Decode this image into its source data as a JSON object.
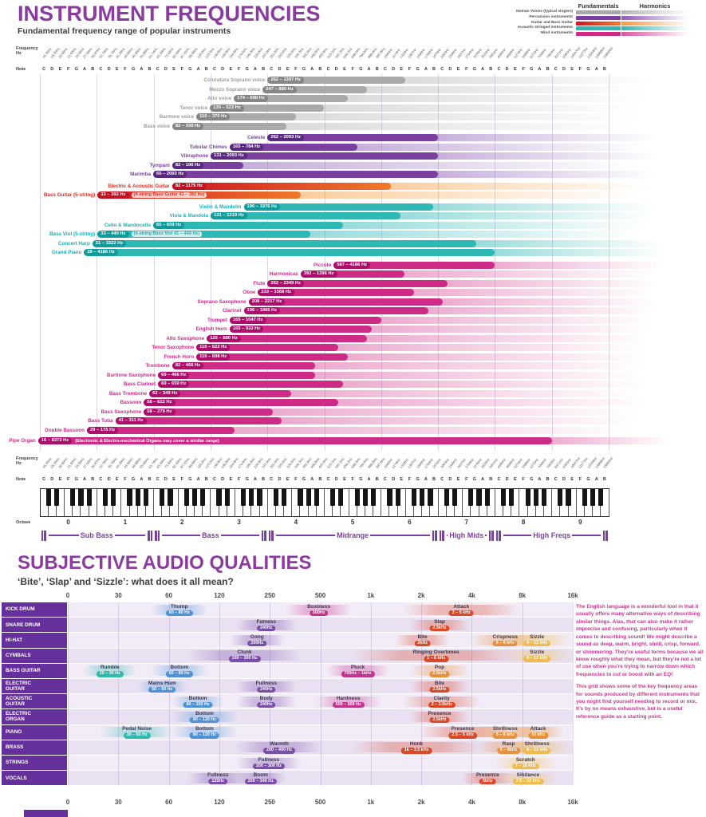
{
  "colors": {
    "accent_purple": "#8b3a9f",
    "dark_text": "#3d3d3d",
    "chip_colors": {
      "teal": "#35b8ae",
      "blue": "#4f93d6",
      "purple": "#7a4fa8",
      "magenta": "#c53590",
      "red": "#d94a2b",
      "orange": "#e8903c",
      "yellow": "#eebd4e"
    },
    "groups": {
      "voices": {
        "bar": "#a9a9a9",
        "pill": "#868686",
        "label": "#9b9b9b",
        "harm": "#b5b5b5"
      },
      "percussion": {
        "bar": "#7b3fa0",
        "pill": "#5a2a82",
        "label": "#7b3fa0",
        "harm": "#8d5cb5"
      },
      "guitars": {
        "bar": "linear-gradient(90deg,#cf1420,#f07a28)",
        "pill": "#c11122",
        "label": "#e02b1c",
        "harm": "#f59a3a"
      },
      "strings": {
        "bar": "#2db7b5",
        "pill": "#0f9c9c",
        "label": "#1fadad",
        "harm": "#2db7b5"
      },
      "winds": {
        "bar": "#ce2b87",
        "pill": "#ad0e6b",
        "label": "#ce2b87",
        "harm": "#d8559e"
      }
    },
    "grid": {
      "row_label_bg": "#66309c",
      "stripe_a": "#f2ecf8",
      "stripe_b": "#e9e0f2",
      "bracket": "#7b3fa0",
      "note_text": "#c9368f"
    }
  },
  "chart_data": [
    {
      "type": "bar",
      "title": "INSTRUMENT FREQUENCIES",
      "subtitle": "Fundamental frequency range of popular instruments",
      "xlabel": "Frequency Hz",
      "x_scale": "log2-octaves",
      "x_range_hz": [
        16.35,
        16744
      ],
      "legend": {
        "fundamentals_header": "Fundamentals",
        "harmonics_header": "Harmonics",
        "items": [
          {
            "label": "Human Voices (typical singers)",
            "group": "voices"
          },
          {
            "label": "Percussion instruments",
            "group": "percussion"
          },
          {
            "label": "Guitar and Bass Guitar",
            "group": "guitars"
          },
          {
            "label": "Acoustic stringed instruments",
            "group": "strings"
          },
          {
            "label": "Wind instruments",
            "group": "winds"
          }
        ]
      },
      "axis": {
        "frequency_label": "Frequency\nHz",
        "note_label": "Note",
        "octave_label": "Octave",
        "notes": [
          "C",
          "D",
          "E",
          "F",
          "G",
          "A",
          "B"
        ],
        "base_freqs": [
          16.35,
          18.35,
          20.6,
          21.83,
          24.5,
          27.5,
          30.87
        ],
        "octaves": [
          0,
          1,
          2,
          3,
          4,
          5,
          6,
          7,
          8,
          9
        ]
      },
      "ranges": [
        {
          "label": "Sub Bass",
          "f1": 16.35,
          "f2": 65.41
        },
        {
          "label": "Bass",
          "f1": 65.41,
          "f2": 261.63
        },
        {
          "label": "Midrange",
          "f1": 261.63,
          "f2": 2093
        },
        {
          "label": "High Mids",
          "f1": 2093,
          "f2": 4186
        },
        {
          "label": "High Freqs",
          "f1": 4186,
          "f2": 16744
        }
      ],
      "instruments": [
        {
          "name": "Coloratura Soprano voice",
          "range_label": "262 – 1397 Hz",
          "fmin": 262,
          "fmax": 1397,
          "group": "voices"
        },
        {
          "name": "Mezzo Soprano voice",
          "range_label": "247 – 880 Hz",
          "fmin": 247,
          "fmax": 880,
          "group": "voices"
        },
        {
          "name": "Alto voice",
          "range_label": "174 – 698 Hz",
          "fmin": 174,
          "fmax": 698,
          "group": "voices"
        },
        {
          "name": "Tenor voice",
          "range_label": "130 – 523 Hz",
          "fmin": 130,
          "fmax": 523,
          "group": "voices"
        },
        {
          "name": "Baritone voice",
          "range_label": "110 – 370 Hz",
          "fmin": 110,
          "fmax": 370,
          "group": "voices"
        },
        {
          "name": "Bass voice",
          "range_label": "82 – 330 Hz",
          "fmin": 82,
          "fmax": 330,
          "group": "voices"
        },
        {
          "name": "Celeste",
          "range_label": "262 – 2093 Hz",
          "fmin": 262,
          "fmax": 2093,
          "group": "percussion"
        },
        {
          "name": "Tubular Chimes",
          "range_label": "165 – 784 Hz",
          "fmin": 165,
          "fmax": 784,
          "group": "percussion"
        },
        {
          "name": "Vibraphone",
          "range_label": "131 – 2093 Hz",
          "fmin": 131,
          "fmax": 2093,
          "group": "percussion"
        },
        {
          "name": "Tympani",
          "range_label": "82 – 196 Hz",
          "fmin": 82,
          "fmax": 196,
          "group": "percussion"
        },
        {
          "name": "Marimba",
          "range_label": "65 – 2093 Hz",
          "fmin": 65,
          "fmax": 2093,
          "group": "percussion"
        },
        {
          "name": "Electric & Acoustic Guitar",
          "range_label": "82 – 1175 Hz",
          "fmin": 82,
          "fmax": 1175,
          "group": "guitars"
        },
        {
          "name": "Bass Guitar (5-string)",
          "range_label": "33 – 392 Hz",
          "fmin": 33,
          "fmax": 392,
          "group": "guitars",
          "note": "(4-string Bass Guitar 41 – 392 Hz)"
        },
        {
          "name": "Violin & Mandolin",
          "range_label": "196 – 1976 Hz",
          "fmin": 196,
          "fmax": 1976,
          "group": "strings"
        },
        {
          "name": "Viola & Mandola",
          "range_label": "131 – 1319 Hz",
          "fmin": 131,
          "fmax": 1319,
          "group": "strings"
        },
        {
          "name": "Cello & Mandocello",
          "range_label": "65 – 659 Hz",
          "fmin": 65,
          "fmax": 659,
          "group": "strings"
        },
        {
          "name": "Bass Viol (5-string)",
          "range_label": "33 – 440 Hz",
          "fmin": 33,
          "fmax": 440,
          "group": "strings",
          "note": "(4-string Bass Viol 41 – 440 Hz)"
        },
        {
          "name": "Concert Harp",
          "range_label": "31 – 3322 Hz",
          "fmin": 31,
          "fmax": 3322,
          "group": "strings"
        },
        {
          "name": "Grand Piano",
          "range_label": "28 – 4186 Hz",
          "fmin": 28,
          "fmax": 4186,
          "group": "strings"
        },
        {
          "name": "Piccolo",
          "range_label": "587 – 4186 Hz",
          "fmin": 587,
          "fmax": 4186,
          "group": "winds"
        },
        {
          "name": "Harmonicas",
          "range_label": "392 – 1396 Hz",
          "fmin": 392,
          "fmax": 1396,
          "group": "winds"
        },
        {
          "name": "Flute",
          "range_label": "262 – 2349 Hz",
          "fmin": 262,
          "fmax": 2349,
          "group": "winds"
        },
        {
          "name": "Oboe",
          "range_label": "233 – 1568 Hz",
          "fmin": 233,
          "fmax": 1568,
          "group": "winds"
        },
        {
          "name": "Soprano Saxophone",
          "range_label": "208 – 2217 Hz",
          "fmin": 208,
          "fmax": 2217,
          "group": "winds"
        },
        {
          "name": "Clarinet",
          "range_label": "196 – 1865 Hz",
          "fmin": 196,
          "fmax": 1865,
          "group": "winds"
        },
        {
          "name": "Trumpet",
          "range_label": "165 – 1047 Hz",
          "fmin": 165,
          "fmax": 1047,
          "group": "winds"
        },
        {
          "name": "English Horn",
          "range_label": "165 – 932 Hz",
          "fmin": 165,
          "fmax": 932,
          "group": "winds"
        },
        {
          "name": "Alto Saxophone",
          "range_label": "125 – 880 Hz",
          "fmin": 125,
          "fmax": 880,
          "group": "winds"
        },
        {
          "name": "Tenor Saxophone",
          "range_label": "110 – 622 Hz",
          "fmin": 110,
          "fmax": 622,
          "group": "winds"
        },
        {
          "name": "French Horn",
          "range_label": "110 – 698 Hz",
          "fmin": 110,
          "fmax": 698,
          "group": "winds"
        },
        {
          "name": "Trombone",
          "range_label": "82 – 466 Hz",
          "fmin": 82,
          "fmax": 466,
          "group": "winds"
        },
        {
          "name": "Baritone Saxophone",
          "range_label": "69 – 466 Hz",
          "fmin": 69,
          "fmax": 466,
          "group": "winds"
        },
        {
          "name": "Bass Clarinet",
          "range_label": "69 – 659 Hz",
          "fmin": 69,
          "fmax": 659,
          "group": "winds"
        },
        {
          "name": "Bass Trombone",
          "range_label": "62 – 349 Hz",
          "fmin": 62,
          "fmax": 349,
          "group": "winds"
        },
        {
          "name": "Bassoon",
          "range_label": "58 – 622 Hz",
          "fmin": 58,
          "fmax": 622,
          "group": "winds"
        },
        {
          "name": "Bass Saxophone",
          "range_label": "58 – 279 Hz",
          "fmin": 58,
          "fmax": 279,
          "group": "winds"
        },
        {
          "name": "Bass Tuba",
          "range_label": "41 – 311 Hz",
          "fmin": 41,
          "fmax": 311,
          "group": "winds"
        },
        {
          "name": "Double Bassoon",
          "range_label": "29 – 175 Hz",
          "fmin": 29,
          "fmax": 175,
          "group": "winds"
        },
        {
          "name": "Pipe Organ",
          "range_label": "16 – 8372 Hz",
          "fmin": 16,
          "fmax": 8372,
          "group": "winds",
          "note": "(Electronic & Electro-mechanical Organs may cover a similar range)",
          "note_white": true
        }
      ]
    },
    {
      "type": "table",
      "title": "SUBJECTIVE AUDIO QUALITIES",
      "subtitle": "‘Bite’, ‘Slap’ and ‘Sizzle’: what does it all mean?",
      "ticks": [
        "0",
        "30",
        "60",
        "120",
        "250",
        "500",
        "1k",
        "2k",
        "4k",
        "8k",
        "16k"
      ],
      "tick_values": [
        0,
        30,
        60,
        120,
        250,
        500,
        1000,
        2000,
        4000,
        8000,
        16000
      ],
      "rows": [
        {
          "label": "KICK DRUM",
          "chips": [
            {
              "label": "Thump",
              "value": "60 – 80 Hz",
              "f1": 60,
              "f2": 80,
              "color": "blue"
            },
            {
              "label": "Boxiness",
              "value": "500Hz",
              "f1": 400,
              "f2": 600,
              "color": "magenta"
            },
            {
              "label": "Attack",
              "value": "2 – 6 kHz",
              "f1": 2000,
              "f2": 6000,
              "color": "red"
            }
          ]
        },
        {
          "label": "SNARE DRUM",
          "chips": [
            {
              "label": "Fatness",
              "value": "240Hz",
              "f1": 200,
              "f2": 280,
              "color": "purple"
            },
            {
              "label": "Slap",
              "value": "2.5kHz",
              "f1": 2200,
              "f2": 3000,
              "color": "red"
            }
          ]
        },
        {
          "label": "HI-HAT",
          "chips": [
            {
              "label": "Gong",
              "value": "200Hz",
              "f1": 180,
              "f2": 240,
              "color": "purple"
            },
            {
              "label": "Bite",
              "value": "2kHz",
              "f1": 1800,
              "f2": 2300,
              "color": "red"
            },
            {
              "label": "Crispness",
              "value": "6 – 8 kHz",
              "f1": 5000,
              "f2": 8000,
              "color": "orange"
            },
            {
              "label": "Sizzle",
              "value": "8 – 12 kHz",
              "f1": 8000,
              "f2": 12000,
              "color": "yellow"
            }
          ]
        },
        {
          "label": "CYMBALS",
          "chips": [
            {
              "label": "Clunk",
              "value": "100 – 300 Hz",
              "f1": 100,
              "f2": 300,
              "color": "purple"
            },
            {
              "label": "Ringing Overtones",
              "value": "1 – 6 kHz",
              "f1": 1000,
              "f2": 6000,
              "color": "red"
            },
            {
              "label": "Sizzle",
              "value": "8 – 12 kHz",
              "f1": 8000,
              "f2": 12000,
              "color": "yellow"
            }
          ]
        },
        {
          "label": "BASS GUITAR",
          "chips": [
            {
              "label": "Rumble",
              "value": "20 – 30 Hz",
              "f1": 20,
              "f2": 30,
              "color": "teal"
            },
            {
              "label": "Bottom",
              "value": "60 – 80 Hz",
              "f1": 60,
              "f2": 80,
              "color": "blue"
            },
            {
              "label": "Pluck",
              "value": "700Hz – 1kHz",
              "f1": 700,
              "f2": 1000,
              "color": "magenta"
            },
            {
              "label": "Pop",
              "value": "2.5kHz",
              "f1": 2200,
              "f2": 3000,
              "color": "orange"
            }
          ]
        },
        {
          "label": "ELECTRIC\nGUITAR",
          "chips": [
            {
              "label": "Mains Hum",
              "value": "50 – 60 Hz",
              "f1": 50,
              "f2": 60,
              "color": "blue"
            },
            {
              "label": "Fullness",
              "value": "240Hz",
              "f1": 200,
              "f2": 280,
              "color": "purple"
            },
            {
              "label": "Bite",
              "value": "2.5kHz",
              "f1": 2200,
              "f2": 3000,
              "color": "red"
            }
          ]
        },
        {
          "label": "ACOUSTIC\nGUITAR",
          "chips": [
            {
              "label": "Bottom",
              "value": "80 – 100 Hz",
              "f1": 80,
              "f2": 100,
              "color": "blue"
            },
            {
              "label": "Body",
              "value": "240Hz",
              "f1": 200,
              "f2": 280,
              "color": "purple"
            },
            {
              "label": "Hardness",
              "value": "600 – 900 Hz",
              "f1": 600,
              "f2": 900,
              "color": "magenta"
            },
            {
              "label": "Clarity",
              "value": "2 – 3.5kHz",
              "f1": 2000,
              "f2": 3500,
              "color": "red"
            }
          ]
        },
        {
          "label": "ELECTRIC\nORGAN",
          "chips": [
            {
              "label": "Bottom",
              "value": "80 – 120 Hz",
              "f1": 80,
              "f2": 120,
              "color": "blue"
            },
            {
              "label": "Presence",
              "value": "2.5kHz",
              "f1": 2200,
              "f2": 3000,
              "color": "red"
            }
          ]
        },
        {
          "label": "PIANO",
          "chips": [
            {
              "label": "Pedal Noise",
              "value": "30 – 50 Hz",
              "f1": 30,
              "f2": 50,
              "color": "teal"
            },
            {
              "label": "Bottom",
              "value": "80 – 120 Hz",
              "f1": 80,
              "f2": 120,
              "color": "blue"
            },
            {
              "label": "Presence",
              "value": "2.5 – 5 kHz",
              "f1": 2500,
              "f2": 5000,
              "color": "red"
            },
            {
              "label": "Shrillness",
              "value": "5 – 8 kHz",
              "f1": 5000,
              "f2": 8000,
              "color": "orange"
            },
            {
              "label": "Attack",
              "value": "10 kHz",
              "f1": 9000,
              "f2": 11000,
              "color": "orange"
            }
          ]
        },
        {
          "label": "BRASS",
          "chips": [
            {
              "label": "Warmth",
              "value": "200 – 400 Hz",
              "f1": 200,
              "f2": 400,
              "color": "purple"
            },
            {
              "label": "Honk",
              "value": "1k – 3.5 kHz",
              "f1": 1000,
              "f2": 3500,
              "color": "red"
            },
            {
              "label": "Rasp",
              "value": "6 – 8kHz",
              "f1": 5500,
              "f2": 8000,
              "color": "orange"
            },
            {
              "label": "Shrillness",
              "value": "8 – 12 kHz",
              "f1": 8000,
              "f2": 12000,
              "color": "yellow"
            }
          ]
        },
        {
          "label": "STRINGS",
          "chips": [
            {
              "label": "Fullness",
              "value": "200 – 300 Hz",
              "f1": 200,
              "f2": 300,
              "color": "purple"
            },
            {
              "label": "Scratch",
              "value": "7 – 10 kHz",
              "f1": 7000,
              "f2": 10000,
              "color": "yellow"
            }
          ]
        },
        {
          "label": "VOCALS",
          "chips": [
            {
              "label": "Fullness",
              "value": "120Hz",
              "f1": 100,
              "f2": 140,
              "color": "purple"
            },
            {
              "label": "Boom",
              "value": "200 – 240 Hz",
              "f1": 200,
              "f2": 240,
              "color": "purple"
            },
            {
              "label": "Presence",
              "value": "5kHz",
              "f1": 4500,
              "f2": 5500,
              "color": "red"
            },
            {
              "label": "Sibilance",
              "value": "7.5 – 10 kHz",
              "f1": 7500,
              "f2": 10000,
              "color": "yellow"
            }
          ]
        }
      ],
      "side_note": [
        "The English language is a wonderful tool in that it usually offers many alternative ways of describing similar things. Alas, that can also make it rather imprecise and confusing, particularly when it comes to describing sound! We might describe a sound as deep, warm, bright, shrill, crisp, forward, or shimmering. They’re useful terms because we all know roughly what they mean, but they’re not a lot of use when you’re trying to narrow down which frequencies to cut or boost with an EQ!",
        "This grid shows some of the key frequency areas for sounds produced by different instruments that you might find yourself needing to record or mix. It’s by no means exhaustive, but is a useful reference guide as a starting point."
      ]
    }
  ]
}
